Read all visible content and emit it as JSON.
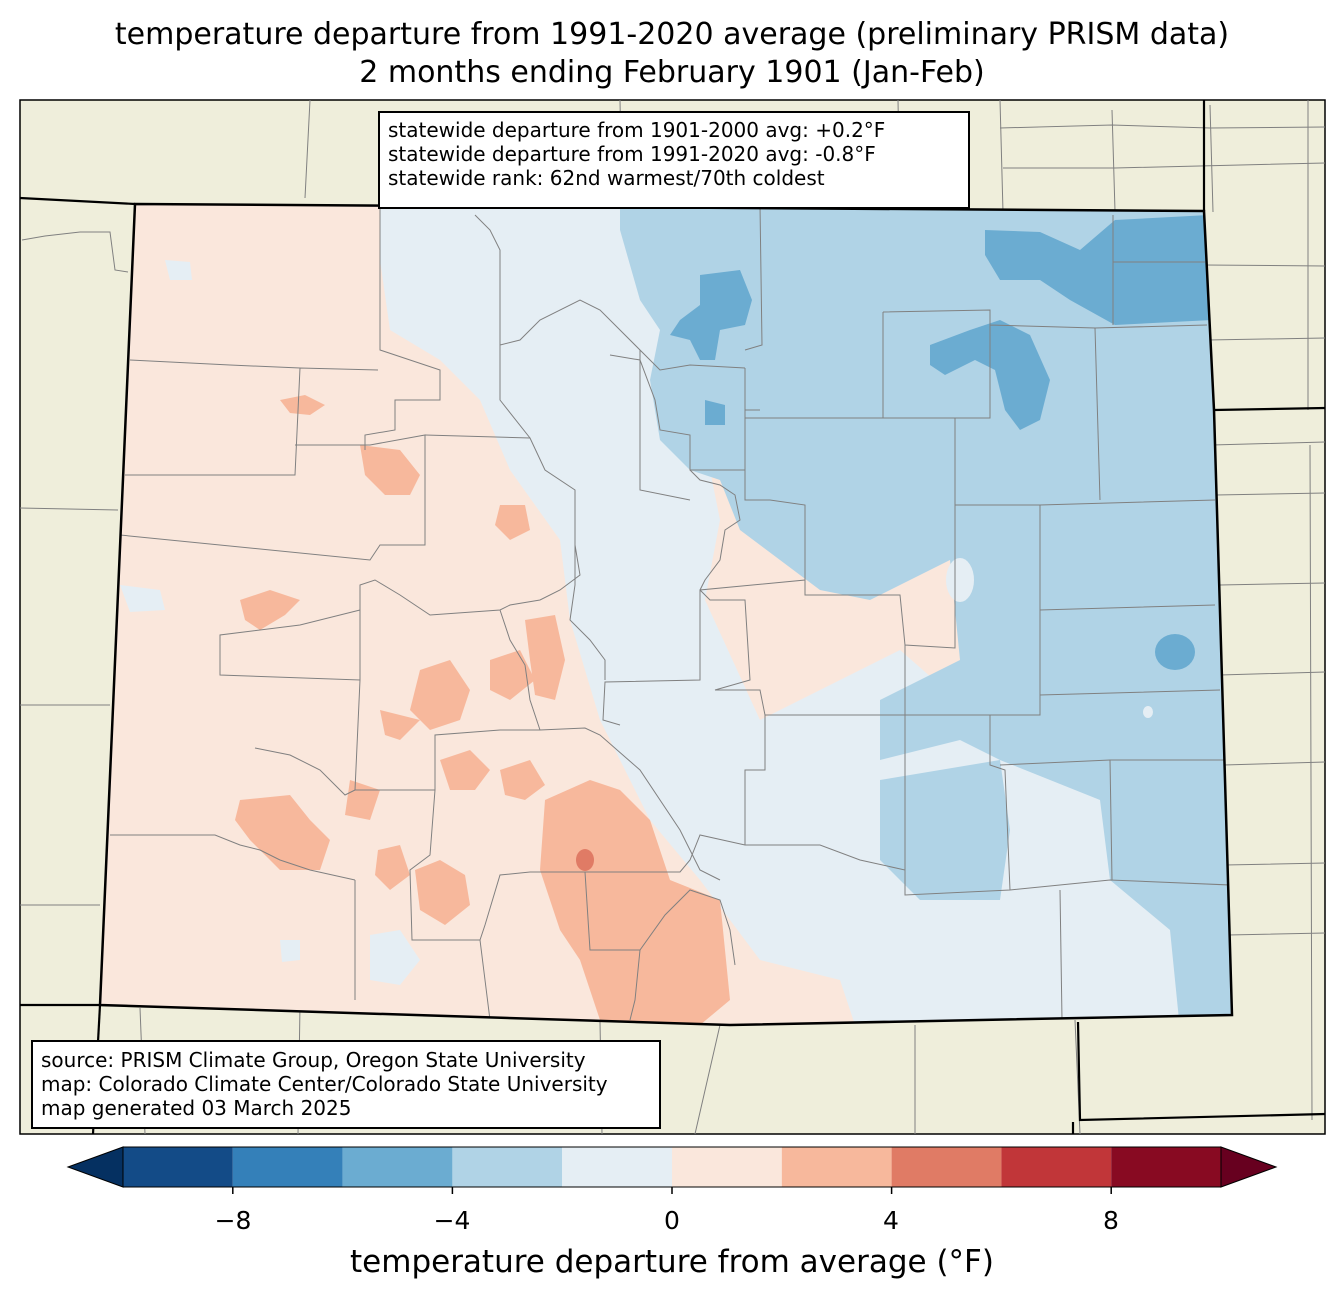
{
  "title": {
    "line1": "temperature departure from 1991-2020 average (preliminary PRISM data)",
    "line2": "2 months ending February 1901 (Jan-Feb)"
  },
  "stats": {
    "line1": "statewide departure from 1901-2000 avg: +0.2°F",
    "line2": "statewide departure from 1991-2020 avg: -0.8°F",
    "line3": "statewide rank: 62nd warmest/70th coldest"
  },
  "source": {
    "line1": "source: PRISM Climate Group, Oregon State University",
    "line2": "map: Colorado Climate Center/Colorado State University",
    "line3": "map generated 03 March 2025"
  },
  "colorbar": {
    "label": "temperature departure from average (°F)",
    "ticks": [
      "−8",
      "−4",
      "0",
      "4",
      "8"
    ],
    "bins": [
      -10,
      -8,
      -6,
      -4,
      -2,
      0,
      2,
      4,
      6,
      8,
      10
    ],
    "colors": [
      "#134b87",
      "#3480b9",
      "#6bacd1",
      "#b0d3e6",
      "#e5eef4",
      "#fae7dc",
      "#f7b89c",
      "#e07b65",
      "#c13639",
      "#880a22"
    ],
    "under_color": "#053061",
    "over_color": "#67001f"
  },
  "map_colors": {
    "land": "#efeedb",
    "warm_light": "#fae7dc",
    "warm_mid": "#f7b89c",
    "warm_hot": "#e07b65",
    "cool_light": "#e5eef4",
    "cool_mid": "#b0d3e6",
    "cool_dark": "#6bacd1",
    "county_line": "#808080",
    "state_line": "#000000"
  }
}
